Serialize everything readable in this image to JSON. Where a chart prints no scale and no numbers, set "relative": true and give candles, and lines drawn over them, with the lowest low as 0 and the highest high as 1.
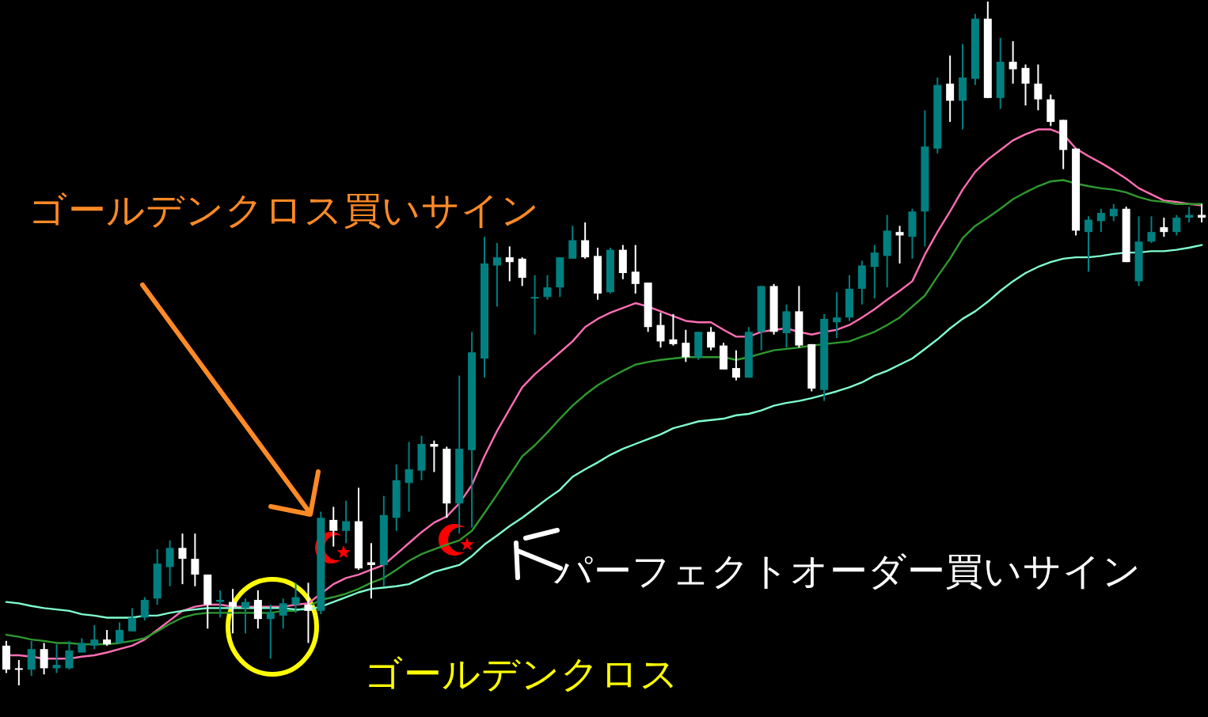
{
  "chart_data": {
    "type": "candlestick",
    "relative": true,
    "categories": [
      null,
      null,
      null,
      null,
      null,
      null,
      null,
      null,
      null,
      null,
      null,
      null,
      null,
      null,
      null,
      null,
      null,
      null,
      null,
      null,
      null,
      null,
      null,
      null,
      null,
      null,
      null,
      null,
      null,
      null,
      null,
      null,
      null,
      null,
      null,
      null,
      null,
      null,
      null,
      null,
      null,
      null,
      null,
      null,
      null,
      null,
      null,
      null,
      null,
      null,
      null,
      null,
      null,
      null,
      null,
      null,
      null,
      null,
      null,
      null,
      null,
      null,
      null,
      null,
      null,
      null,
      null,
      null,
      null,
      null,
      null,
      null,
      null,
      null,
      null,
      null,
      null,
      null,
      null,
      null,
      null,
      null,
      null,
      null,
      null,
      null,
      null,
      null,
      null,
      null,
      null,
      null,
      null,
      null,
      null,
      null
    ],
    "ohlc": [
      [
        0.058,
        0.065,
        0.018,
        0.023
      ],
      [
        0.025,
        0.037,
        0,
        0.023
      ],
      [
        0.023,
        0.065,
        0.014,
        0.053
      ],
      [
        0.053,
        0.062,
        0.016,
        0.025
      ],
      [
        0.025,
        0.06,
        0.018,
        0.03
      ],
      [
        0.025,
        0.065,
        0.023,
        0.051
      ],
      [
        0.048,
        0.069,
        0.048,
        0.062
      ],
      [
        0.058,
        0.088,
        0.053,
        0.067
      ],
      [
        0.067,
        0.081,
        0.058,
        0.06
      ],
      [
        0.062,
        0.092,
        0.062,
        0.081
      ],
      [
        0.079,
        0.113,
        0.079,
        0.099
      ],
      [
        0.099,
        0.129,
        0.095,
        0.125
      ],
      [
        0.127,
        0.199,
        0.118,
        0.178
      ],
      [
        0.173,
        0.212,
        0.145,
        0.201
      ],
      [
        0.201,
        0.222,
        0.148,
        0.185
      ],
      [
        0.185,
        0.222,
        0.145,
        0.162
      ],
      [
        0.162,
        0.162,
        0.083,
        0.118
      ],
      [
        0.122,
        0.139,
        0.099,
        0.125
      ],
      [
        0.122,
        0.141,
        0.076,
        0.115
      ],
      [
        0.113,
        0.127,
        0.076,
        0.122
      ],
      [
        0.125,
        0.139,
        0.083,
        0.097
      ],
      [
        0.097,
        0.118,
        0.039,
        0.106
      ],
      [
        0.102,
        0.127,
        0.083,
        0.12
      ],
      [
        0.118,
        0.15,
        0.106,
        0.129
      ],
      [
        0.118,
        0.15,
        0.062,
        0.109
      ],
      [
        0.109,
        0.254,
        0.104,
        0.245
      ],
      [
        0.242,
        0.261,
        0.203,
        0.226
      ],
      [
        0.226,
        0.27,
        0.208,
        0.24
      ],
      [
        0.24,
        0.289,
        0.169,
        0.171
      ],
      [
        0.18,
        0.208,
        0.127,
        0.176
      ],
      [
        0.176,
        0.277,
        0.145,
        0.249
      ],
      [
        0.245,
        0.323,
        0.226,
        0.3
      ],
      [
        0.296,
        0.356,
        0.254,
        0.316
      ],
      [
        0.314,
        0.365,
        0.3,
        0.353
      ],
      [
        0.353,
        0.358,
        0.312,
        0.349
      ],
      [
        0.346,
        0.349,
        0.245,
        0.266
      ],
      [
        0.266,
        0.453,
        0.222,
        0.346
      ],
      [
        0.344,
        0.517,
        0.231,
        0.487
      ],
      [
        0.478,
        0.656,
        0.45,
        0.617
      ],
      [
        0.614,
        0.647,
        0.554,
        0.626
      ],
      [
        0.626,
        0.642,
        0.591,
        0.619
      ],
      [
        0.624,
        0.626,
        0.584,
        0.596
      ],
      [
        0.566,
        0.6,
        0.513,
        0.568
      ],
      [
        0.568,
        0.6,
        0.564,
        0.582
      ],
      [
        0.582,
        0.626,
        0.568,
        0.626
      ],
      [
        0.624,
        0.672,
        0.624,
        0.651
      ],
      [
        0.651,
        0.677,
        0.624,
        0.626
      ],
      [
        0.628,
        0.64,
        0.564,
        0.573
      ],
      [
        0.575,
        0.64,
        0.573,
        0.637
      ],
      [
        0.637,
        0.644,
        0.594,
        0.603
      ],
      [
        0.605,
        0.644,
        0.573,
        0.587
      ],
      [
        0.589,
        0.589,
        0.517,
        0.524
      ],
      [
        0.527,
        0.545,
        0.494,
        0.503
      ],
      [
        0.506,
        0.543,
        0.497,
        0.499
      ],
      [
        0.501,
        0.52,
        0.473,
        0.48
      ],
      [
        0.48,
        0.517,
        0.476,
        0.517
      ],
      [
        0.517,
        0.524,
        0.49,
        0.494
      ],
      [
        0.497,
        0.501,
        0.462,
        0.462
      ],
      [
        0.464,
        0.49,
        0.446,
        0.45
      ],
      [
        0.45,
        0.524,
        0.45,
        0.517
      ],
      [
        0.517,
        0.584,
        0.49,
        0.584
      ],
      [
        0.584,
        0.587,
        0.513,
        0.517
      ],
      [
        0.515,
        0.557,
        0.494,
        0.547
      ],
      [
        0.547,
        0.584,
        0.494,
        0.497
      ],
      [
        0.499,
        0.499,
        0.43,
        0.434
      ],
      [
        0.432,
        0.543,
        0.416,
        0.536
      ],
      [
        0.531,
        0.575,
        0.508,
        0.538
      ],
      [
        0.538,
        0.6,
        0.533,
        0.58
      ],
      [
        0.58,
        0.621,
        0.557,
        0.614
      ],
      [
        0.612,
        0.644,
        0.566,
        0.633
      ],
      [
        0.628,
        0.688,
        0.582,
        0.665
      ],
      [
        0.663,
        0.672,
        0.617,
        0.658
      ],
      [
        0.656,
        0.697,
        0.624,
        0.693
      ],
      [
        0.693,
        0.841,
        0.642,
        0.788
      ],
      [
        0.785,
        0.889,
        0.778,
        0.878
      ],
      [
        0.88,
        0.921,
        0.824,
        0.855
      ],
      [
        0.855,
        0.938,
        0.813,
        0.889
      ],
      [
        0.887,
        0.982,
        0.878,
        0.975
      ],
      [
        0.975,
        1,
        0.859,
        0.859
      ],
      [
        0.859,
        0.947,
        0.843,
        0.912
      ],
      [
        0.912,
        0.942,
        0.88,
        0.901
      ],
      [
        0.903,
        0.908,
        0.848,
        0.88
      ],
      [
        0.88,
        0.908,
        0.841,
        0.857
      ],
      [
        0.857,
        0.864,
        0.818,
        0.824
      ],
      [
        0.827,
        0.827,
        0.755,
        0.783
      ],
      [
        0.785,
        0.785,
        0.658,
        0.665
      ],
      [
        0.663,
        0.686,
        0.605,
        0.681
      ],
      [
        0.679,
        0.697,
        0.663,
        0.691
      ],
      [
        0.686,
        0.704,
        0.679,
        0.697
      ],
      [
        0.697,
        0.7,
        0.619,
        0.619
      ],
      [
        0.591,
        0.686,
        0.584,
        0.649
      ],
      [
        0.649,
        0.686,
        0.647,
        0.663
      ],
      [
        0.67,
        0.684,
        0.656,
        0.663
      ],
      [
        0.663,
        0.688,
        0.658,
        0.684
      ],
      [
        0.684,
        0.7,
        0.677,
        0.688
      ],
      [
        0.688,
        0.704,
        0.677,
        0.684
      ]
    ],
    "colors": [
      "#ffffff",
      "#ffffff",
      "#008080",
      "#ffffff",
      "#008080",
      "#008080",
      "#008080",
      "#008080",
      "#ffffff",
      "#008080",
      "#008080",
      "#008080",
      "#008080",
      "#008080",
      "#ffffff",
      "#ffffff",
      "#ffffff",
      "#008080",
      "#ffffff",
      "#008080",
      "#ffffff",
      "#008080",
      "#008080",
      "#008080",
      "#ffffff",
      "#008080",
      "#ffffff",
      "#008080",
      "#ffffff",
      "#ffffff",
      "#008080",
      "#008080",
      "#008080",
      "#008080",
      "#ffffff",
      "#ffffff",
      "#008080",
      "#008080",
      "#008080",
      "#008080",
      "#ffffff",
      "#ffffff",
      "#008080",
      "#008080",
      "#008080",
      "#008080",
      "#ffffff",
      "#ffffff",
      "#008080",
      "#ffffff",
      "#ffffff",
      "#ffffff",
      "#ffffff",
      "#ffffff",
      "#ffffff",
      "#008080",
      "#ffffff",
      "#ffffff",
      "#ffffff",
      "#008080",
      "#008080",
      "#ffffff",
      "#008080",
      "#ffffff",
      "#ffffff",
      "#008080",
      "#008080",
      "#008080",
      "#008080",
      "#008080",
      "#008080",
      "#ffffff",
      "#008080",
      "#008080",
      "#008080",
      "#ffffff",
      "#008080",
      "#008080",
      "#ffffff",
      "#008080",
      "#ffffff",
      "#ffffff",
      "#ffffff",
      "#ffffff",
      "#ffffff",
      "#ffffff",
      "#008080",
      "#008080",
      "#008080",
      "#ffffff",
      "#008080",
      "#008080",
      "#ffffff",
      "#008080",
      "#008080",
      "#ffffff"
    ],
    "series": [
      {
        "type": "line",
        "color": "#ff6eb4",
        "values": [
          0.044,
          0.044,
          0.042,
          0.039,
          0.039,
          0.039,
          0.042,
          0.044,
          0.048,
          0.053,
          0.058,
          0.067,
          0.081,
          0.095,
          0.109,
          0.115,
          0.118,
          0.118,
          0.115,
          0.115,
          0.115,
          0.115,
          0.115,
          0.118,
          0.12,
          0.134,
          0.148,
          0.157,
          0.162,
          0.169,
          0.176,
          0.192,
          0.208,
          0.224,
          0.238,
          0.247,
          0.266,
          0.293,
          0.335,
          0.372,
          0.404,
          0.436,
          0.455,
          0.471,
          0.487,
          0.503,
          0.524,
          0.536,
          0.545,
          0.552,
          0.559,
          0.554,
          0.547,
          0.54,
          0.533,
          0.531,
          0.531,
          0.52,
          0.51,
          0.51,
          0.517,
          0.52,
          0.522,
          0.517,
          0.513,
          0.517,
          0.52,
          0.527,
          0.538,
          0.55,
          0.564,
          0.577,
          0.591,
          0.63,
          0.663,
          0.693,
          0.725,
          0.751,
          0.769,
          0.783,
          0.797,
          0.806,
          0.813,
          0.813,
          0.806,
          0.785,
          0.774,
          0.764,
          0.753,
          0.741,
          0.727,
          0.718,
          0.709,
          0.707,
          0.704,
          0.702
        ]
      },
      {
        "type": "line",
        "color": "#2e9a2e",
        "values": [
          0.074,
          0.071,
          0.067,
          0.065,
          0.062,
          0.062,
          0.06,
          0.06,
          0.06,
          0.062,
          0.065,
          0.069,
          0.079,
          0.09,
          0.099,
          0.104,
          0.106,
          0.106,
          0.106,
          0.106,
          0.106,
          0.106,
          0.109,
          0.109,
          0.115,
          0.125,
          0.129,
          0.134,
          0.141,
          0.15,
          0.157,
          0.169,
          0.182,
          0.192,
          0.199,
          0.206,
          0.212,
          0.226,
          0.252,
          0.279,
          0.307,
          0.335,
          0.351,
          0.37,
          0.39,
          0.409,
          0.425,
          0.439,
          0.45,
          0.46,
          0.469,
          0.473,
          0.476,
          0.478,
          0.48,
          0.48,
          0.48,
          0.48,
          0.476,
          0.48,
          0.485,
          0.49,
          0.492,
          0.494,
          0.497,
          0.499,
          0.501,
          0.503,
          0.51,
          0.517,
          0.527,
          0.538,
          0.554,
          0.57,
          0.598,
          0.624,
          0.654,
          0.672,
          0.684,
          0.697,
          0.711,
          0.721,
          0.73,
          0.737,
          0.739,
          0.734,
          0.73,
          0.727,
          0.725,
          0.721,
          0.714,
          0.709,
          0.707,
          0.704,
          0.704,
          0.704
        ]
      },
      {
        "type": "line",
        "color": "#80ffd0",
        "values": [
          0.122,
          0.12,
          0.116,
          0.113,
          0.111,
          0.109,
          0.104,
          0.102,
          0.099,
          0.099,
          0.099,
          0.102,
          0.102,
          0.106,
          0.109,
          0.111,
          0.113,
          0.113,
          0.113,
          0.113,
          0.113,
          0.113,
          0.113,
          0.111,
          0.111,
          0.115,
          0.122,
          0.129,
          0.136,
          0.141,
          0.143,
          0.145,
          0.148,
          0.157,
          0.166,
          0.171,
          0.176,
          0.189,
          0.206,
          0.219,
          0.233,
          0.245,
          0.259,
          0.273,
          0.286,
          0.305,
          0.316,
          0.326,
          0.337,
          0.346,
          0.353,
          0.36,
          0.367,
          0.376,
          0.381,
          0.386,
          0.388,
          0.39,
          0.395,
          0.397,
          0.402,
          0.409,
          0.413,
          0.416,
          0.42,
          0.425,
          0.43,
          0.436,
          0.443,
          0.453,
          0.46,
          0.469,
          0.478,
          0.492,
          0.506,
          0.522,
          0.536,
          0.547,
          0.561,
          0.577,
          0.591,
          0.603,
          0.612,
          0.619,
          0.624,
          0.626,
          0.626,
          0.628,
          0.631,
          0.633,
          0.633,
          0.635,
          0.635,
          0.637,
          0.64,
          0.644
        ]
      }
    ],
    "annotations": [
      "ゴールデンクロス買いサイン",
      "パーフェクトオーダー買いサイン",
      "ゴールデンクロス"
    ]
  }
}
